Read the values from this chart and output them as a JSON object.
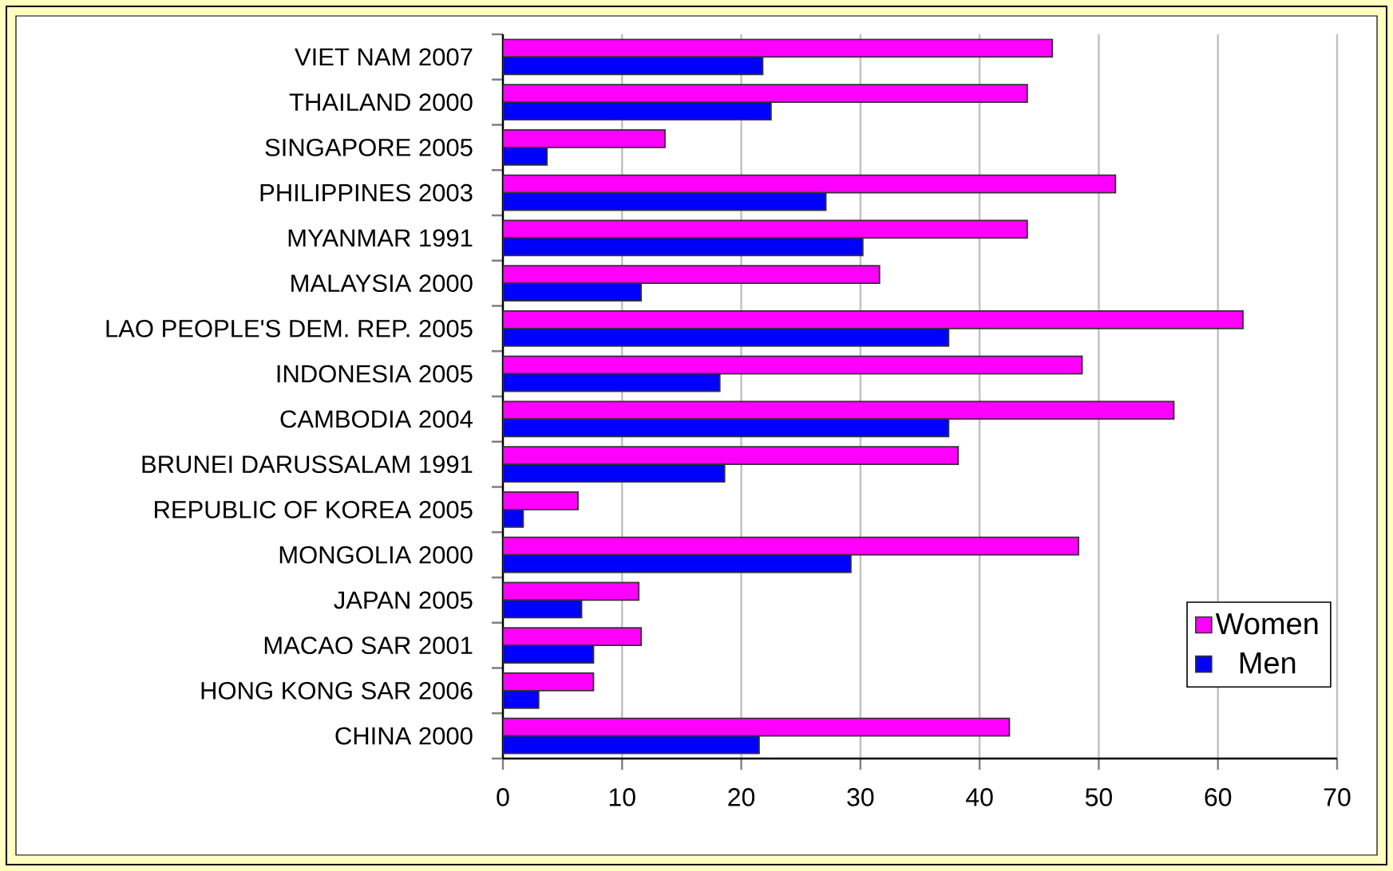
{
  "chart_data": {
    "type": "bar",
    "orientation": "horizontal",
    "categories": [
      "VIET NAM 2007",
      "THAILAND 2000",
      "SINGAPORE 2005",
      "PHILIPPINES 2003",
      "MYANMAR 1991",
      "MALAYSIA 2000",
      "LAO PEOPLE'S DEM. REP. 2005",
      "INDONESIA 2005",
      "CAMBODIA 2004",
      "BRUNEI DARUSSALAM 1991",
      "REPUBLIC OF KOREA 2005",
      "MONGOLIA 2000",
      "JAPAN 2005",
      "MACAO SAR 2001",
      "HONG KONG SAR  2006",
      "CHINA 2000"
    ],
    "series": [
      {
        "name": "Women",
        "color": "#ff00ff",
        "values": [
          46.1,
          44.0,
          13.6,
          51.4,
          44.0,
          31.6,
          62.1,
          48.6,
          56.3,
          38.2,
          6.3,
          48.3,
          11.4,
          11.6,
          7.6,
          42.5
        ]
      },
      {
        "name": "Men",
        "color": "#0000ff",
        "values": [
          21.8,
          22.5,
          3.7,
          27.1,
          30.2,
          11.6,
          37.4,
          18.2,
          37.4,
          18.6,
          1.7,
          29.2,
          6.6,
          7.6,
          3.0,
          21.5
        ]
      }
    ],
    "xlim": [
      0,
      70
    ],
    "xticks": [
      0,
      10,
      20,
      30,
      40,
      50,
      60,
      70
    ],
    "grid": "x",
    "legend": "bottom right"
  }
}
